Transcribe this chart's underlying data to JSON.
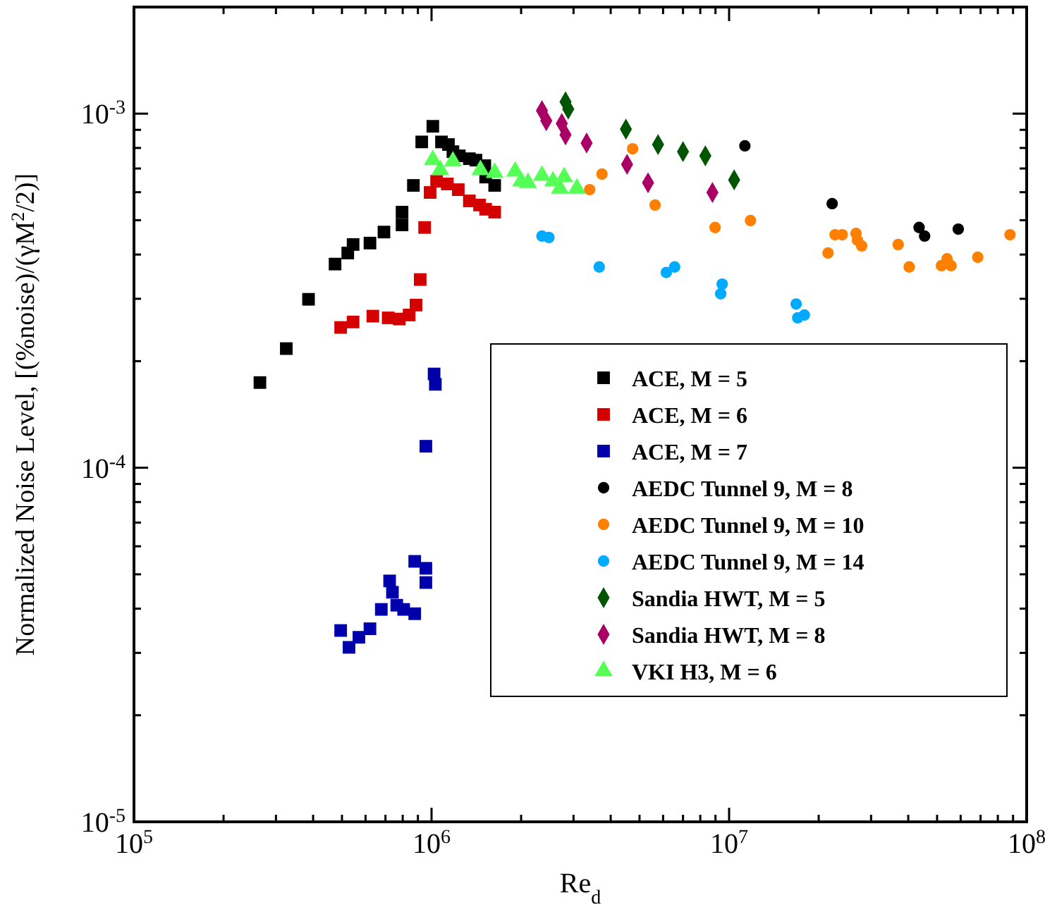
{
  "chart_data": {
    "type": "scatter",
    "xlabel": "Re$_{d}$",
    "ylabel": "Normalized Noise Level, [(%noise)/(γM$^{2}$/2)]",
    "log": "xy",
    "legend": "right",
    "grid": false,
    "xlim": [
      100000.0,
      100000000.0
    ],
    "ylim": [
      1e-05,
      0.002
    ],
    "xticks": [
      {
        "value": 100000.0,
        "label": "10$^{5}$"
      },
      {
        "value": 200000.0,
        "label": null
      },
      {
        "value": 300000.0,
        "label": null
      },
      {
        "value": 400000.0,
        "label": null
      },
      {
        "value": 500000.0,
        "label": null
      },
      {
        "value": 600000.0,
        "label": null
      },
      {
        "value": 700000.0,
        "label": null
      },
      {
        "value": 800000.0,
        "label": null
      },
      {
        "value": 900000.0,
        "label": null
      },
      {
        "value": 1000000.0,
        "label": "10$^{6}$"
      },
      {
        "value": 2000000.0,
        "label": null
      },
      {
        "value": 3000000.0,
        "label": null
      },
      {
        "value": 4000000.0,
        "label": null
      },
      {
        "value": 5000000.0,
        "label": null
      },
      {
        "value": 6000000.0,
        "label": null
      },
      {
        "value": 7000000.0,
        "label": null
      },
      {
        "value": 8000000.0,
        "label": null
      },
      {
        "value": 9000000.0,
        "label": null
      },
      {
        "value": 10000000.0,
        "label": "10$^{7}$"
      },
      {
        "value": 20000000.0,
        "label": null
      },
      {
        "value": 30000000.0,
        "label": null
      },
      {
        "value": 40000000.0,
        "label": null
      },
      {
        "value": 50000000.0,
        "label": null
      },
      {
        "value": 60000000.0,
        "label": null
      },
      {
        "value": 70000000.0,
        "label": null
      },
      {
        "value": 80000000.0,
        "label": null
      },
      {
        "value": 90000000.0,
        "label": null
      },
      {
        "value": 100000000.0,
        "label": "10$^{8}$"
      }
    ],
    "yticks": [
      {
        "value": 1e-05,
        "label": "10$^{-5}$"
      },
      {
        "value": 2e-05,
        "label": null
      },
      {
        "value": 3e-05,
        "label": null
      },
      {
        "value": 4e-05,
        "label": null
      },
      {
        "value": 5e-05,
        "label": null
      },
      {
        "value": 6e-05,
        "label": null
      },
      {
        "value": 7e-05,
        "label": null
      },
      {
        "value": 8e-05,
        "label": null
      },
      {
        "value": 9e-05,
        "label": null
      },
      {
        "value": 0.0001,
        "label": "10$^{-4}$"
      },
      {
        "value": 0.0002,
        "label": null
      },
      {
        "value": 0.0003,
        "label": null
      },
      {
        "value": 0.0004,
        "label": null
      },
      {
        "value": 0.0005,
        "label": null
      },
      {
        "value": 0.0006,
        "label": null
      },
      {
        "value": 0.0007,
        "label": null
      },
      {
        "value": 0.0008,
        "label": null
      },
      {
        "value": 0.0009,
        "label": null
      },
      {
        "value": 0.001,
        "label": "10$^{-3}$"
      },
      {
        "value": 0.002,
        "label": null
      }
    ],
    "series": [
      {
        "name": "ACE, M = 5",
        "color": "#000000",
        "marker": "square",
        "x": [
          265000.0,
          325000.0,
          386000.0,
          474000.0,
          523000.0,
          545000.0,
          621000.0,
          692000.0,
          796000.0,
          796000.0,
          869000.0,
          927000.0,
          1010000.0,
          1080000.0,
          1140000.0,
          1180000.0,
          1240000.0,
          1340000.0,
          1410000.0,
          1510000.0,
          1520000.0,
          1630000.0
        ],
        "values": [
          0.000174,
          0.000217,
          0.000299,
          0.000376,
          0.000404,
          0.000427,
          0.000431,
          0.000463,
          0.000527,
          0.000485,
          0.000627,
          0.000832,
          0.000921,
          0.000832,
          0.000818,
          0.000781,
          0.00076,
          0.000746,
          0.000739,
          0.000713,
          0.000662,
          0.000627
        ]
      },
      {
        "name": "ACE, M = 6",
        "color": "#d40000",
        "marker": "square",
        "x": [
          495000.0,
          545000.0,
          635000.0,
          715000.0,
          779000.0,
          841000.0,
          887000.0,
          916000.0,
          948000.0,
          989000.0,
          1040000.0,
          1130000.0,
          1230000.0,
          1340000.0,
          1450000.0,
          1520000.0,
          1630000.0
        ],
        "values": [
          0.000249,
          0.000258,
          0.000268,
          0.000265,
          0.000263,
          0.00027,
          0.000288,
          0.00034,
          0.000477,
          0.000599,
          0.000644,
          0.000633,
          0.00061,
          0.000567,
          0.000552,
          0.000537,
          0.000527
        ]
      },
      {
        "name": "ACE, M = 7",
        "color": "#0000aa",
        "marker": "square",
        "x": [
          495000.0,
          528000.0,
          570000.0,
          621000.0,
          678000.0,
          723000.0,
          739000.0,
          764000.0,
          806000.0,
          878000.0,
          878000.0,
          957000.0,
          957000.0,
          957000.0,
          1020000.0,
          1030000.0
        ],
        "values": [
          3.47e-05,
          3.11e-05,
          3.32e-05,
          3.51e-05,
          3.98e-05,
          4.79e-05,
          4.45e-05,
          4.09e-05,
          3.98e-05,
          3.87e-05,
          5.44e-05,
          5.2e-05,
          4.74e-05,
          0.000115,
          0.000184,
          0.000172
        ]
      },
      {
        "name": "AEDC Tunnel 9, M = 8",
        "color": "#000000",
        "marker": "circle",
        "x": [
          11300000.0,
          22200000.0,
          43500000.0,
          45400000.0,
          58900000.0
        ],
        "values": [
          0.000811,
          0.000557,
          0.000477,
          0.000451,
          0.000472
        ]
      },
      {
        "name": "AEDC Tunnel 9, M = 10",
        "color": "#ff8000",
        "marker": "circle",
        "x": [
          3400000.0,
          3740000.0,
          4740000.0,
          5640000.0,
          8970000.0,
          11800000.0,
          21500000.0,
          22700000.0,
          24000000.0,
          26700000.0,
          27000000.0,
          27900000.0,
          37000000.0,
          40300000.0,
          51700000.0,
          54000000.0,
          55700000.0,
          68500000.0,
          87900000.0
        ],
        "values": [
          0.00061,
          0.000675,
          0.000796,
          0.000552,
          0.000477,
          0.000499,
          0.000404,
          0.000455,
          0.000455,
          0.000459,
          0.000439,
          0.000423,
          0.000427,
          0.000369,
          0.000372,
          0.000389,
          0.000372,
          0.000393,
          0.000455
        ]
      },
      {
        "name": "AEDC Tunnel 9, M = 14",
        "color": "#00aaff",
        "marker": "circle",
        "x": [
          2350000.0,
          2480000.0,
          3660000.0,
          6150000.0,
          6560000.0,
          9480000.0,
          9370000.0,
          16800000.0,
          17900000.0,
          17000000.0
        ],
        "values": [
          0.000451,
          0.000447,
          0.000369,
          0.000356,
          0.000369,
          0.00033,
          0.00031,
          0.00029,
          0.00027,
          0.000265
        ]
      },
      {
        "name": "Sandia HWT, M = 5",
        "color": "#005500",
        "marker": "diamond",
        "x": [
          2820000.0,
          2880000.0,
          4500000.0,
          5770000.0,
          7000000.0,
          8320000.0,
          10400000.0
        ],
        "values": [
          0.00108,
          0.00103,
          0.000904,
          0.000818,
          0.000781,
          0.00076,
          0.00065
        ]
      },
      {
        "name": "Sandia HWT, M = 8",
        "color": "#aa0066",
        "marker": "diamond",
        "x": [
          2350000.0,
          2430000.0,
          2740000.0,
          2820000.0,
          3320000.0,
          4540000.0,
          5340000.0,
          8790000.0
        ],
        "values": [
          0.00102,
          0.000955,
          0.000938,
          0.000871,
          0.000826,
          0.000719,
          0.000638,
          0.000599
        ]
      },
      {
        "name": "VKI H3, M = 6",
        "color": "#55ff55",
        "marker": "triangle",
        "x": [
          1010000.0,
          1070000.0,
          1180000.0,
          1460000.0,
          1630000.0,
          1910000.0,
          2000000.0,
          2110000.0,
          2350000.0,
          2560000.0,
          2700000.0,
          2790000.0,
          3080000.0
        ],
        "values": [
          0.00074,
          0.000693,
          0.000733,
          0.000693,
          0.000681,
          0.000687,
          0.000644,
          0.000638,
          0.000668,
          0.000644,
          0.000615,
          0.000662,
          0.000615
        ]
      }
    ]
  }
}
